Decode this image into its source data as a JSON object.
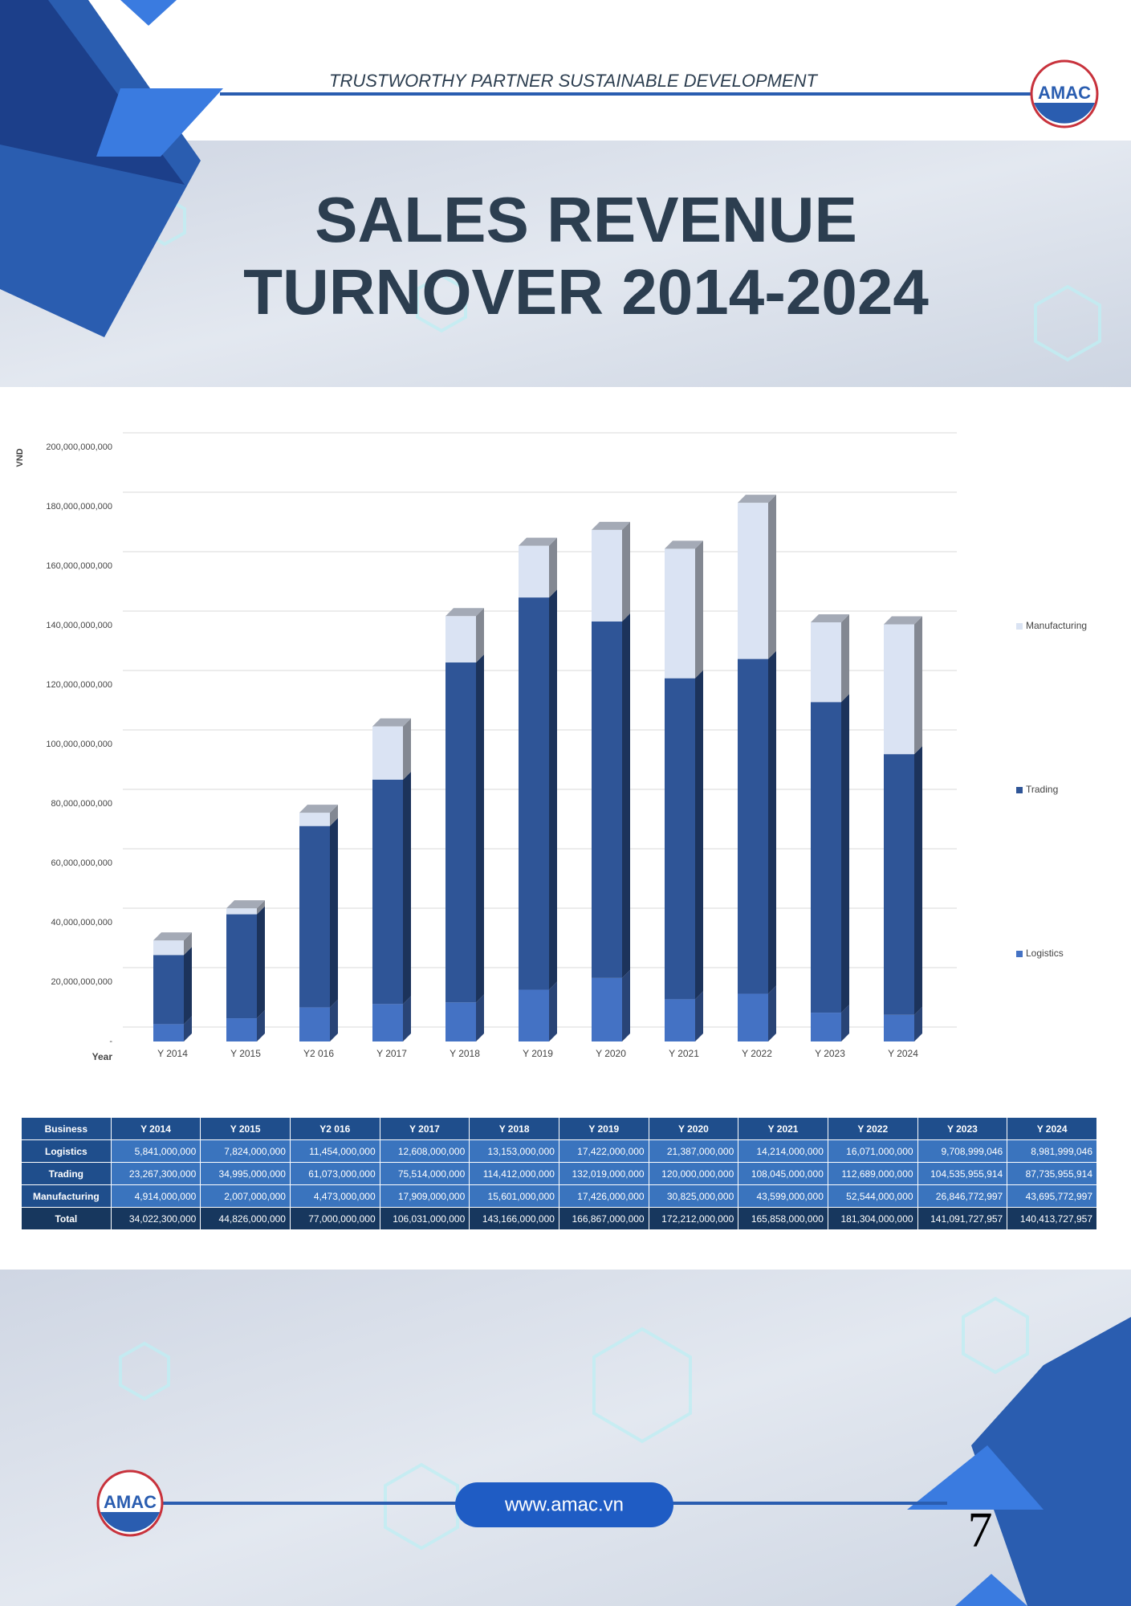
{
  "header": {
    "tagline": "TRUSTWORTHY PARTNER SUSTAINABLE DEVELOPMENT",
    "logo": "AMAC",
    "title_line1": "SALES REVENUE",
    "title_line2": "TURNOVER 2014-2024"
  },
  "chart_data": {
    "type": "bar",
    "stacked": true,
    "y_label": "VND",
    "x_label": "Year",
    "categories": [
      "Y 2014",
      "Y 2015",
      "Y2 016",
      "Y 2017",
      "Y 2018",
      "Y 2019",
      "Y 2020",
      "Y 2021",
      "Y 2022",
      "Y 2023",
      "Y 2024"
    ],
    "series": [
      {
        "name": "Logistics",
        "color": "#4472c4",
        "values": [
          5841000000,
          7824000000,
          11454000000,
          12608000000,
          13153000000,
          17422000000,
          21387000000,
          14214000000,
          16071000000,
          9708999046,
          8981999046
        ]
      },
      {
        "name": "Trading",
        "color": "#2f5597",
        "values": [
          23267300000,
          34995000000,
          61073000000,
          75514000000,
          114412000000,
          132019000000,
          120000000000,
          108045000000,
          112689000000,
          104535955914,
          87735955914
        ]
      },
      {
        "name": "Manufacturing",
        "color": "#dae3f3",
        "values": [
          4914000000,
          2007000000,
          4473000000,
          17909000000,
          15601000000,
          17426000000,
          30825000000,
          43599000000,
          52544000000,
          26846772997,
          43695772997
        ]
      }
    ],
    "ylim": [
      0,
      200000000000
    ],
    "yticks": [
      {
        "value": 0,
        "label": "-"
      },
      {
        "value": 20000000000,
        "label": "20,000,000,000"
      },
      {
        "value": 40000000000,
        "label": "40,000,000,000"
      },
      {
        "value": 60000000000,
        "label": "60,000,000,000"
      },
      {
        "value": 80000000000,
        "label": "80,000,000,000"
      },
      {
        "value": 100000000000,
        "label": "100,000,000,000"
      },
      {
        "value": 120000000000,
        "label": "120,000,000,000"
      },
      {
        "value": 140000000000,
        "label": "140,000,000,000"
      },
      {
        "value": 160000000000,
        "label": "160,000,000,000"
      },
      {
        "value": 180000000000,
        "label": "180,000,000,000"
      },
      {
        "value": 200000000000,
        "label": "200,000,000,000"
      }
    ],
    "grid": true,
    "legend": "right"
  },
  "table": {
    "header": [
      "Business",
      "Y 2014",
      "Y 2015",
      "Y2 016",
      "Y 2017",
      "Y 2018",
      "Y 2019",
      "Y 2020",
      "Y 2021",
      "Y 2022",
      "Y 2023",
      "Y 2024"
    ],
    "rows": [
      [
        "Logistics",
        "5,841,000,000",
        "7,824,000,000",
        "11,454,000,000",
        "12,608,000,000",
        "13,153,000,000",
        "17,422,000,000",
        "21,387,000,000",
        "14,214,000,000",
        "16,071,000,000",
        "9,708,999,046",
        "8,981,999,046"
      ],
      [
        "Trading",
        "23,267,300,000",
        "34,995,000,000",
        "61,073,000,000",
        "75,514,000,000",
        "114,412,000,000",
        "132,019,000,000",
        "120,000,000,000",
        "108,045,000,000",
        "112,689,000,000",
        "104,535,955,914",
        "87,735,955,914"
      ],
      [
        "Manufacturing",
        "4,914,000,000",
        "2,007,000,000",
        "4,473,000,000",
        "17,909,000,000",
        "15,601,000,000",
        "17,426,000,000",
        "30,825,000,000",
        "43,599,000,000",
        "52,544,000,000",
        "26,846,772,997",
        "43,695,772,997"
      ],
      [
        "Total",
        "34,022,300,000",
        "44,826,000,000",
        "77,000,000,000",
        "106,031,000,000",
        "143,166,000,000",
        "166,867,000,000",
        "172,212,000,000",
        "165,858,000,000",
        "181,304,000,000",
        "141,091,727,957",
        "140,413,727,957"
      ]
    ]
  },
  "footer": {
    "logo": "AMAC",
    "website": "www.amac.vn",
    "page_number": "7"
  }
}
